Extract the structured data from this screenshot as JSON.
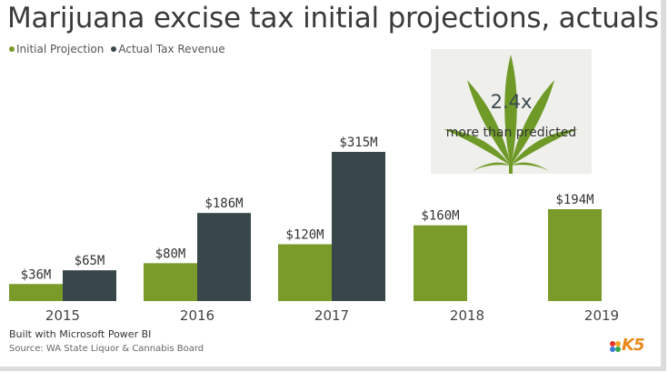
{
  "header": {
    "title": "Marijuana excise tax initial projections, actuals"
  },
  "legend": {
    "items": [
      {
        "label": "Initial Projection",
        "color": "#7a9a2a"
      },
      {
        "label": "Actual Tax Revenue",
        "color": "#37474a"
      }
    ]
  },
  "callout": {
    "multiplier": "2.4x",
    "text": "more than predicted",
    "image": "cannabis-leaf-icon"
  },
  "footer": {
    "built_with": "Built with Microsoft Power BI",
    "source": "Source: WA State Liquor & Cannabis Board",
    "logo": "K5"
  },
  "chart_data": {
    "type": "bar",
    "categories": [
      "2015",
      "2016",
      "2017",
      "2018",
      "2019"
    ],
    "series": [
      {
        "name": "Initial Projection",
        "color": "#7a9a2a",
        "values": [
          36,
          80,
          120,
          160,
          194
        ],
        "labels": [
          "$36M",
          "$80M",
          "$120M",
          "$160M",
          "$194M"
        ]
      },
      {
        "name": "Actual Tax Revenue",
        "color": "#37474a",
        "values": [
          65,
          186,
          315,
          null,
          null
        ],
        "labels": [
          "$65M",
          "$186M",
          "$315M",
          "",
          ""
        ]
      }
    ],
    "ylim": [
      0,
      315
    ],
    "grid": false,
    "legend_position": "top-left"
  }
}
